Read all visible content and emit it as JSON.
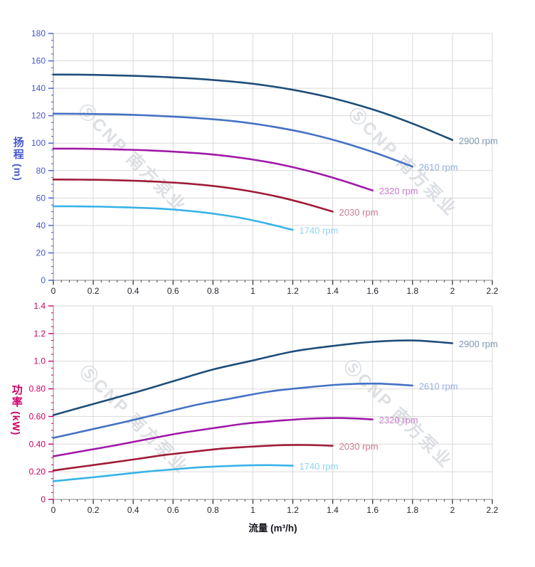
{
  "watermark": {
    "text": "ⓈCNP 南方泵业"
  },
  "chart_data": [
    {
      "type": "line",
      "title": "",
      "xlabel": "",
      "ylabel": "扬程 (m)",
      "ylabel_main": "扬程",
      "ylabel_unit": "(m)",
      "xlim": [
        0,
        2.2
      ],
      "ylim": [
        0,
        180
      ],
      "grid": true,
      "legend_position": "line-end",
      "axis_text_color": "#4757cf",
      "x_ticks": [
        0,
        0.2,
        0.4,
        0.6,
        0.8,
        1,
        1.2,
        1.4,
        1.6,
        1.8,
        2,
        2.2
      ],
      "x_tick_labels": [
        "0",
        "0.2",
        "0.4",
        "0.6",
        "0.8",
        "1",
        "1.2",
        "1.4",
        "1.6",
        "1.8",
        "2",
        "2.2"
      ],
      "x_minor_step": 0.04,
      "y_ticks": [
        0,
        20,
        40,
        60,
        80,
        100,
        120,
        140,
        160,
        180
      ],
      "y_tick_labels": [
        "0",
        "20",
        "40",
        "60",
        "80",
        "100",
        "120",
        "140",
        "160",
        "180"
      ],
      "y_minor_step": 5,
      "series": [
        {
          "name": "2900 rpm",
          "color": "#1f4e79",
          "x": [
            0,
            0.2,
            0.4,
            0.6,
            0.8,
            1.0,
            1.2,
            1.4,
            1.6,
            1.8,
            2.0
          ],
          "y": [
            150,
            149.8,
            149.1,
            147.9,
            146.1,
            143.3,
            138.9,
            132.8,
            124.6,
            114.3,
            102.3
          ]
        },
        {
          "name": "2610 rpm",
          "color": "#4472c4",
          "x": [
            0,
            0.18,
            0.36,
            0.54,
            0.72,
            0.9,
            1.08,
            1.26,
            1.44,
            1.62,
            1.8
          ],
          "y": [
            121.5,
            121.3,
            120.8,
            119.8,
            118.3,
            116.1,
            112.5,
            107.6,
            100.9,
            92.6,
            82.9
          ]
        },
        {
          "name": "2320 rpm",
          "color": "#a018a8",
          "x": [
            0,
            0.16,
            0.32,
            0.48,
            0.64,
            0.8,
            0.96,
            1.12,
            1.28,
            1.44,
            1.6
          ],
          "y": [
            96,
            95.9,
            95.4,
            94.7,
            93.5,
            91.7,
            88.9,
            85,
            79.7,
            73.1,
            65.5
          ]
        },
        {
          "name": "2030 rpm",
          "color": "#a01c38",
          "x": [
            0,
            0.14,
            0.28,
            0.42,
            0.56,
            0.7,
            0.84,
            0.98,
            1.12,
            1.26,
            1.4
          ],
          "y": [
            73.5,
            73.4,
            73.1,
            72.5,
            71.6,
            70.2,
            68.1,
            65.1,
            61.1,
            56,
            50.1
          ]
        },
        {
          "name": "1740 rpm",
          "color": "#38b3e6",
          "x": [
            0,
            0.12,
            0.24,
            0.36,
            0.48,
            0.6,
            0.72,
            0.84,
            0.96,
            1.08,
            1.2
          ],
          "y": [
            54,
            53.9,
            53.7,
            53.2,
            52.6,
            51.6,
            50,
            47.8,
            44.9,
            41.1,
            36.8
          ]
        }
      ]
    },
    {
      "type": "line",
      "title": "",
      "xlabel": "流量 (m³/h)",
      "ylabel": "功率 (kW)",
      "ylabel_main": "功率",
      "ylabel_unit": "(kW)",
      "xlim": [
        0,
        2.2
      ],
      "ylim": [
        0,
        1.4
      ],
      "grid": true,
      "legend_position": "line-end",
      "axis_text_color": "#cc0066",
      "x_ticks": [
        0,
        0.2,
        0.4,
        0.6,
        0.8,
        1,
        1.2,
        1.4,
        1.6,
        1.8,
        2,
        2.2
      ],
      "x_tick_labels": [
        "0",
        "0.2",
        "0.4",
        "0.6",
        "0.8",
        "1",
        "1.2",
        "1.4",
        "1.6",
        "1.8",
        "2",
        "2.2"
      ],
      "x_minor_step": 0.04,
      "y_ticks": [
        0,
        0.2,
        0.4,
        0.6,
        0.8,
        1.0,
        1.2,
        1.4
      ],
      "y_tick_labels": [
        "0",
        "0.20",
        "0.40",
        "0.60",
        "0.80",
        "1.0",
        "1.2",
        "1.4"
      ],
      "y_minor_step": 0.05,
      "series": [
        {
          "name": "2900 rpm",
          "color": "#1f4e79",
          "x": [
            0,
            0.2,
            0.4,
            0.6,
            0.8,
            1.0,
            1.2,
            1.4,
            1.6,
            1.8,
            2.0
          ],
          "y": [
            0.61,
            0.69,
            0.77,
            0.855,
            0.94,
            1.005,
            1.07,
            1.11,
            1.14,
            1.15,
            1.13
          ]
        },
        {
          "name": "2610 rpm",
          "color": "#4472c4",
          "x": [
            0,
            0.18,
            0.36,
            0.54,
            0.72,
            0.9,
            1.08,
            1.26,
            1.44,
            1.62,
            1.8
          ],
          "y": [
            0.445,
            0.503,
            0.561,
            0.623,
            0.685,
            0.733,
            0.78,
            0.809,
            0.831,
            0.838,
            0.824
          ]
        },
        {
          "name": "2320 rpm",
          "color": "#a018a8",
          "x": [
            0,
            0.16,
            0.32,
            0.48,
            0.64,
            0.8,
            0.96,
            1.12,
            1.28,
            1.44,
            1.6
          ],
          "y": [
            0.312,
            0.353,
            0.394,
            0.438,
            0.481,
            0.515,
            0.548,
            0.568,
            0.584,
            0.589,
            0.579
          ]
        },
        {
          "name": "2030 rpm",
          "color": "#a01c38",
          "x": [
            0,
            0.14,
            0.28,
            0.42,
            0.56,
            0.7,
            0.84,
            0.98,
            1.12,
            1.26,
            1.4
          ],
          "y": [
            0.209,
            0.237,
            0.264,
            0.293,
            0.322,
            0.345,
            0.367,
            0.381,
            0.391,
            0.394,
            0.388
          ]
        },
        {
          "name": "1740 rpm",
          "color": "#38b3e6",
          "x": [
            0,
            0.12,
            0.24,
            0.36,
            0.48,
            0.6,
            0.72,
            0.84,
            0.96,
            1.08,
            1.2
          ],
          "y": [
            0.132,
            0.149,
            0.166,
            0.185,
            0.203,
            0.217,
            0.231,
            0.24,
            0.246,
            0.248,
            0.244
          ]
        }
      ]
    }
  ]
}
